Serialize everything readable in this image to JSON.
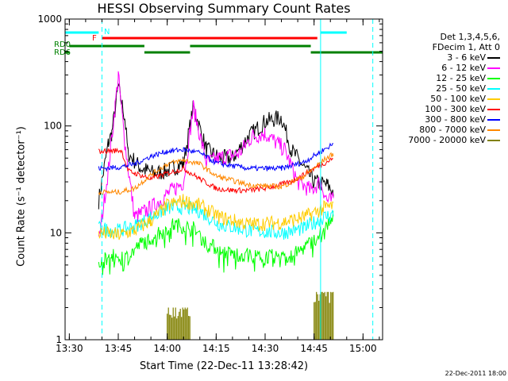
{
  "chart_data": {
    "type": "line",
    "title": "HESSI Observing Summary Count Rates",
    "xlabel": "Start Time (22-Dec-11 13:28:42)",
    "ylabel": "Count Rate (s⁻¹ detector⁻¹)",
    "yscale": "log",
    "ylim": [
      1,
      1000
    ],
    "xlim": [
      "13:28:42",
      "15:06:00"
    ],
    "x_ticks": [
      "13:30",
      "13:45",
      "14:00",
      "14:15",
      "14:30",
      "14:45",
      "15:00"
    ],
    "y_ticks": [
      "1",
      "10",
      "100",
      "1000"
    ],
    "legend_header": [
      "Det 1,3,4,5,6,",
      "FDecim 1, Att 0"
    ],
    "legend_position": "right",
    "series": [
      {
        "name": "3 - 6 keV",
        "color": "#000000",
        "points": [
          [
            "13:39",
            20
          ],
          [
            "13:42",
            70
          ],
          [
            "13:43",
            85
          ],
          [
            "13:45",
            230
          ],
          [
            "13:47",
            120
          ],
          [
            "13:48",
            55
          ],
          [
            "13:52",
            40
          ],
          [
            "13:56",
            36
          ],
          [
            "14:00",
            38
          ],
          [
            "14:05",
            45
          ],
          [
            "14:08",
            150
          ],
          [
            "14:12",
            60
          ],
          [
            "14:16",
            50
          ],
          [
            "14:20",
            50
          ],
          [
            "14:25",
            80
          ],
          [
            "14:30",
            110
          ],
          [
            "14:35",
            120
          ],
          [
            "14:38",
            60
          ],
          [
            "14:45",
            30
          ],
          [
            "14:49",
            28
          ],
          [
            "14:51",
            24
          ]
        ]
      },
      {
        "name": "6 - 12 keV",
        "color": "#ff00ff",
        "points": [
          [
            "13:39",
            8
          ],
          [
            "13:42",
            40
          ],
          [
            "13:44",
            150
          ],
          [
            "13:45",
            300
          ],
          [
            "13:47",
            70
          ],
          [
            "13:50",
            14
          ],
          [
            "13:55",
            17
          ],
          [
            "14:00",
            23
          ],
          [
            "14:05",
            30
          ],
          [
            "14:08",
            150
          ],
          [
            "14:12",
            45
          ],
          [
            "14:16",
            50
          ],
          [
            "14:22",
            55
          ],
          [
            "14:26",
            80
          ],
          [
            "14:30",
            85
          ],
          [
            "14:36",
            60
          ],
          [
            "14:40",
            30
          ],
          [
            "14:44",
            25
          ],
          [
            "14:47",
            30
          ],
          [
            "14:49",
            20
          ],
          [
            "14:51",
            20
          ]
        ]
      },
      {
        "name": "12 - 25 keV",
        "color": "#00ff00",
        "points": [
          [
            "13:39",
            5.5
          ],
          [
            "13:43",
            6
          ],
          [
            "13:48",
            6
          ],
          [
            "13:52",
            8
          ],
          [
            "13:58",
            10
          ],
          [
            "14:02",
            12
          ],
          [
            "14:08",
            11
          ],
          [
            "14:12",
            8
          ],
          [
            "14:18",
            6.5
          ],
          [
            "14:28",
            6
          ],
          [
            "14:38",
            6
          ],
          [
            "14:45",
            8.5
          ],
          [
            "14:51",
            14
          ]
        ]
      },
      {
        "name": "25 - 50 keV",
        "color": "#00ffff",
        "points": [
          [
            "13:39",
            11
          ],
          [
            "13:45",
            10.5
          ],
          [
            "13:50",
            11.5
          ],
          [
            "13:55",
            14
          ],
          [
            "14:00",
            17
          ],
          [
            "14:05",
            17.5
          ],
          [
            "14:10",
            16
          ],
          [
            "14:16",
            12
          ],
          [
            "14:25",
            10.5
          ],
          [
            "14:35",
            10
          ],
          [
            "14:42",
            11
          ],
          [
            "14:48",
            14
          ],
          [
            "14:51",
            15
          ]
        ]
      },
      {
        "name": "50 - 100 keV",
        "color": "#ffcc00",
        "points": [
          [
            "13:39",
            10
          ],
          [
            "13:45",
            9.5
          ],
          [
            "13:50",
            10.5
          ],
          [
            "13:55",
            13
          ],
          [
            "14:00",
            18
          ],
          [
            "14:05",
            20
          ],
          [
            "14:10",
            18
          ],
          [
            "14:16",
            14
          ],
          [
            "14:25",
            12
          ],
          [
            "14:35",
            12.5
          ],
          [
            "14:42",
            14
          ],
          [
            "14:48",
            17
          ],
          [
            "14:51",
            18
          ]
        ]
      },
      {
        "name": "100 - 300 keV",
        "color": "#ff0000",
        "points": [
          [
            "13:39",
            58
          ],
          [
            "13:46",
            59
          ],
          [
            "13:48",
            38
          ],
          [
            "13:55",
            32
          ],
          [
            "14:00",
            36
          ],
          [
            "14:05",
            40
          ],
          [
            "14:10",
            32
          ],
          [
            "14:15",
            26
          ],
          [
            "14:20",
            25
          ],
          [
            "14:25",
            25
          ],
          [
            "14:30",
            26
          ],
          [
            "14:38",
            30
          ],
          [
            "14:45",
            40
          ],
          [
            "14:51",
            50
          ]
        ]
      },
      {
        "name": "300 - 800 keV",
        "color": "#0000ff",
        "points": [
          [
            "13:39",
            40
          ],
          [
            "13:45",
            41
          ],
          [
            "13:50",
            44
          ],
          [
            "13:55",
            52
          ],
          [
            "14:00",
            58
          ],
          [
            "14:05",
            60
          ],
          [
            "14:10",
            56
          ],
          [
            "14:15",
            45
          ],
          [
            "14:25",
            40
          ],
          [
            "14:35",
            40
          ],
          [
            "14:42",
            46
          ],
          [
            "14:48",
            60
          ],
          [
            "14:51",
            68
          ]
        ]
      },
      {
        "name": "800 - 7000 keV",
        "color": "#ff8800",
        "points": [
          [
            "13:39",
            24
          ],
          [
            "13:45",
            24
          ],
          [
            "13:50",
            26
          ],
          [
            "13:55",
            35
          ],
          [
            "14:00",
            44
          ],
          [
            "14:05",
            48
          ],
          [
            "14:10",
            44
          ],
          [
            "14:15",
            34
          ],
          [
            "14:25",
            28
          ],
          [
            "14:35",
            27
          ],
          [
            "14:42",
            34
          ],
          [
            "14:48",
            48
          ],
          [
            "14:51",
            55
          ]
        ]
      },
      {
        "name": "7000 - 20000 keV",
        "color": "#808000",
        "points": [
          [
            "14:00",
            2.0
          ],
          [
            "14:07",
            2.0
          ],
          [
            "14:45",
            2.8
          ],
          [
            "14:51",
            2.8
          ]
        ]
      }
    ],
    "state_bars": [
      {
        "label": "N",
        "color": "#00ffff",
        "segments": [
          [
            "13:28:42",
            "13:39"
          ],
          [
            "14:47",
            "14:55"
          ]
        ]
      },
      {
        "label": "F",
        "color": "#ff0000",
        "segments": [
          [
            "13:40",
            "14:46"
          ]
        ]
      },
      {
        "label": "RD0",
        "color": "#008000",
        "segments": [
          [
            "13:30",
            "13:53"
          ],
          [
            "14:07",
            "14:44"
          ]
        ]
      },
      {
        "label": "RD6",
        "color": "#008000",
        "segments": [
          [
            "13:28:42",
            "13:30"
          ],
          [
            "13:53",
            "14:07"
          ],
          [
            "14:44",
            "15:06"
          ]
        ]
      }
    ],
    "vertical_lines": {
      "dashed": [
        "13:40",
        "15:03"
      ],
      "solid": [
        "14:47"
      ],
      "color": "#00ffff"
    }
  },
  "footer_stamp": "22-Dec-2011 18:00"
}
